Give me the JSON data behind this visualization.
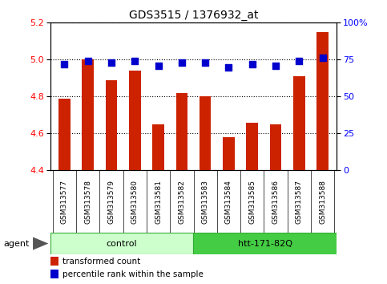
{
  "title": "GDS3515 / 1376932_at",
  "samples": [
    "GSM313577",
    "GSM313578",
    "GSM313579",
    "GSM313580",
    "GSM313581",
    "GSM313582",
    "GSM313583",
    "GSM313584",
    "GSM313585",
    "GSM313586",
    "GSM313587",
    "GSM313588"
  ],
  "transformed_counts": [
    4.79,
    5.0,
    4.89,
    4.94,
    4.65,
    4.82,
    4.8,
    4.58,
    4.66,
    4.65,
    4.91,
    5.15
  ],
  "percentile_ranks": [
    72,
    74,
    73,
    74,
    71,
    73,
    73,
    70,
    72,
    71,
    74,
    76
  ],
  "ylim_left": [
    4.4,
    5.2
  ],
  "ylim_right": [
    0,
    100
  ],
  "yticks_left": [
    4.4,
    4.6,
    4.8,
    5.0,
    5.2
  ],
  "yticks_right": [
    0,
    25,
    50,
    75,
    100
  ],
  "ytick_labels_right": [
    "0",
    "25",
    "50",
    "75",
    "100%"
  ],
  "bar_color": "#cc2200",
  "dot_color": "#0000cc",
  "n_control": 6,
  "n_treat": 6,
  "control_label": "control",
  "treatment_label": "htt-171-82Q",
  "agent_label": "agent",
  "legend_bar_label": "transformed count",
  "legend_dot_label": "percentile rank within the sample",
  "control_bg_light": "#ccffcc",
  "treatment_bg_bright": "#44cc44",
  "xtick_bg": "#c8c8c8",
  "bar_width": 0.5,
  "baseline": 4.4,
  "dot_size": 30,
  "title_fontsize": 10,
  "tick_fontsize": 8,
  "label_fontsize": 8
}
